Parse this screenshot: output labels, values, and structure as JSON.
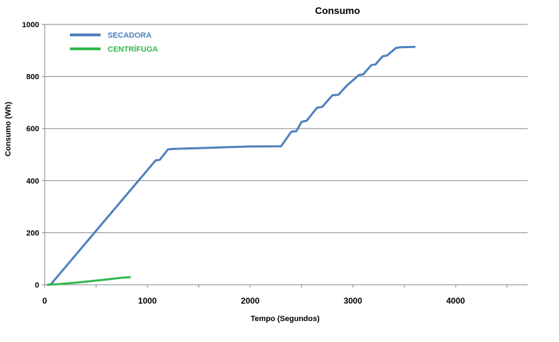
{
  "chart_data": {
    "type": "line",
    "title": "Consumo",
    "xlabel": "Tempo (Segundos)",
    "ylabel": "Consumo (Wh)",
    "xlim": [
      0,
      4700
    ],
    "ylim": [
      0,
      1000
    ],
    "x_ticks": [
      0,
      1000,
      2000,
      3000,
      4000
    ],
    "y_ticks": [
      0,
      200,
      400,
      600,
      800,
      1000
    ],
    "grid": "horizontal",
    "legend_position": "top-left",
    "series": [
      {
        "name": "SECADORA",
        "color": "#4f81bd",
        "points": [
          [
            30,
            0
          ],
          [
            60,
            2
          ],
          [
            1080,
            478
          ],
          [
            1120,
            480
          ],
          [
            1200,
            520
          ],
          [
            1260,
            522
          ],
          [
            1500,
            525
          ],
          [
            1800,
            529
          ],
          [
            2000,
            531
          ],
          [
            2300,
            532
          ],
          [
            2400,
            588
          ],
          [
            2450,
            590
          ],
          [
            2500,
            626
          ],
          [
            2550,
            630
          ],
          [
            2650,
            680
          ],
          [
            2700,
            683
          ],
          [
            2800,
            728
          ],
          [
            2860,
            730
          ],
          [
            2940,
            765
          ],
          [
            3060,
            806
          ],
          [
            3100,
            808
          ],
          [
            3180,
            844
          ],
          [
            3220,
            846
          ],
          [
            3290,
            878
          ],
          [
            3330,
            880
          ],
          [
            3420,
            910
          ],
          [
            3460,
            912
          ],
          [
            3530,
            913
          ],
          [
            3600,
            914
          ]
        ]
      },
      {
        "name": "CENTRÍFUGA",
        "color": "#33b84d",
        "points": [
          [
            30,
            0
          ],
          [
            150,
            3
          ],
          [
            300,
            8
          ],
          [
            450,
            14
          ],
          [
            600,
            20
          ],
          [
            700,
            25
          ],
          [
            780,
            28
          ],
          [
            830,
            29
          ]
        ]
      }
    ]
  }
}
